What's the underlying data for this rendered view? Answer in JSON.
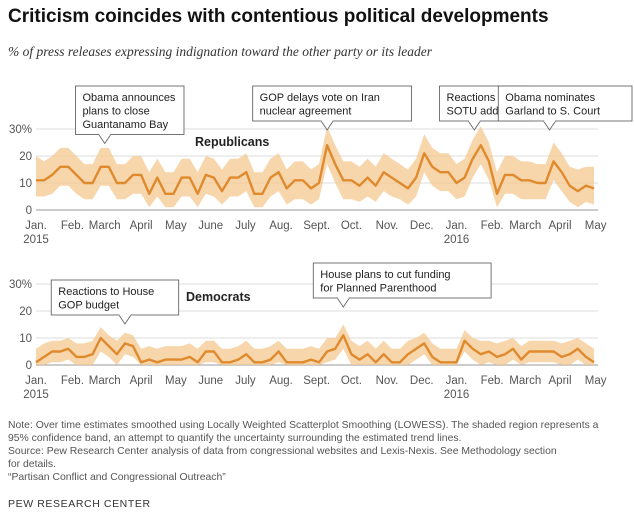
{
  "title": "Criticism coincides with contentious political developments",
  "subtitle": "% of press releases expressing indignation toward the other party or its leader",
  "colors": {
    "line": "#e08a2e",
    "band": "#f4c890",
    "axis": "#999999",
    "grid": "#dddddd",
    "text": "#333333"
  },
  "chart_data": [
    {
      "type": "area",
      "title": "Republicans",
      "ylabel": "",
      "xlabel": "",
      "ylim": [
        0,
        30
      ],
      "yticks": [
        0,
        10,
        20,
        30
      ],
      "ytick_labels": [
        "0",
        "10",
        "20",
        "30%"
      ],
      "grid": true,
      "xticks": [
        {
          "label": "Jan.",
          "year": "2015",
          "week": 1
        },
        {
          "label": "Feb.",
          "year": "",
          "week": 5.5
        },
        {
          "label": "March",
          "year": "",
          "week": 9.5
        },
        {
          "label": "April",
          "year": "",
          "week": 14
        },
        {
          "label": "May",
          "year": "",
          "week": 18.3
        },
        {
          "label": "June",
          "year": "",
          "week": 22.6
        },
        {
          "label": "July",
          "year": "",
          "week": 26.9
        },
        {
          "label": "Aug.",
          "year": "",
          "week": 31.3
        },
        {
          "label": "Sept.",
          "year": "",
          "week": 35.7
        },
        {
          "label": "Oct.",
          "year": "",
          "week": 40
        },
        {
          "label": "Nov.",
          "year": "",
          "week": 44.4
        },
        {
          "label": "Dec.",
          "year": "",
          "week": 48.7
        },
        {
          "label": "Jan.",
          "year": "2016",
          "week": 53
        },
        {
          "label": "Feb.",
          "year": "",
          "week": 57.4
        },
        {
          "label": "March",
          "year": "",
          "week": 61.5
        },
        {
          "label": "April",
          "year": "",
          "week": 65.8
        },
        {
          "label": "May",
          "year": "",
          "week": 70.2
        }
      ],
      "series": [
        {
          "weeks": [
            1,
            2,
            3,
            4,
            5,
            6,
            7,
            8,
            9,
            10,
            11,
            12,
            13,
            14,
            15,
            16,
            17,
            18,
            19,
            20,
            21,
            22,
            23,
            24,
            25,
            26,
            27,
            28,
            29,
            30,
            31,
            32,
            33,
            34,
            35,
            36,
            37,
            38,
            39,
            40,
            41,
            42,
            43,
            44,
            45,
            46,
            47,
            48,
            49,
            50,
            51,
            52,
            53,
            54,
            55,
            56,
            57,
            58,
            59,
            60,
            61,
            62,
            63,
            64,
            65,
            66,
            67,
            68,
            69,
            70
          ],
          "values": [
            11,
            11,
            13,
            16,
            16,
            13,
            10,
            10,
            16,
            16,
            10,
            10,
            13,
            13,
            6,
            12,
            6,
            6,
            12,
            12,
            6,
            13,
            12,
            7,
            12,
            12,
            14,
            6,
            6,
            12,
            14,
            8,
            11,
            11,
            8,
            10,
            24,
            17,
            11,
            11,
            9,
            12,
            9,
            14,
            12,
            10,
            8,
            12,
            21,
            16,
            14,
            14,
            10,
            12,
            19,
            24,
            18,
            6,
            13,
            13,
            11,
            11,
            10,
            10,
            18,
            14,
            9,
            7,
            9,
            8
          ],
          "lower": [
            5,
            5,
            6,
            9,
            9,
            6,
            4,
            4,
            9,
            9,
            4,
            4,
            6,
            6,
            1,
            5,
            1,
            1,
            5,
            5,
            1,
            6,
            5,
            2,
            5,
            5,
            7,
            1,
            1,
            5,
            7,
            2,
            4,
            4,
            2,
            4,
            17,
            10,
            4,
            4,
            3,
            5,
            3,
            7,
            5,
            4,
            2,
            5,
            14,
            9,
            7,
            7,
            4,
            5,
            12,
            17,
            11,
            1,
            6,
            6,
            4,
            4,
            4,
            4,
            11,
            7,
            3,
            1,
            3,
            2
          ],
          "upper": [
            20,
            18,
            20,
            23,
            23,
            20,
            17,
            17,
            23,
            23,
            17,
            17,
            20,
            20,
            14,
            19,
            14,
            14,
            19,
            19,
            14,
            20,
            19,
            15,
            19,
            19,
            21,
            14,
            14,
            19,
            21,
            15,
            18,
            18,
            15,
            17,
            31,
            24,
            18,
            18,
            16,
            19,
            16,
            21,
            19,
            17,
            15,
            19,
            28,
            23,
            21,
            21,
            17,
            19,
            26,
            31,
            25,
            14,
            20,
            20,
            18,
            18,
            17,
            17,
            25,
            21,
            16,
            15,
            16,
            16
          ]
        }
      ],
      "annotations": [
        {
          "text": [
            "Obama announces",
            "plans to close",
            "Guantanamo Bay"
          ],
          "week": 9.5
        },
        {
          "text": [
            "GOP delays vote on Iran",
            "nuclear agreement"
          ],
          "week": 37
        },
        {
          "text": [
            "Reactions to",
            "SOTU address"
          ],
          "week": 55.2
        },
        {
          "text": [
            "Obama nominates",
            "Garland to S. Court"
          ],
          "week": 64.5
        }
      ]
    },
    {
      "type": "area",
      "title": "Democrats",
      "ylabel": "",
      "xlabel": "",
      "ylim": [
        0,
        30
      ],
      "yticks": [
        0,
        10,
        20,
        30
      ],
      "ytick_labels": [
        "0",
        "10",
        "20",
        "30%"
      ],
      "grid": true,
      "xticks": [
        {
          "label": "Jan.",
          "year": "2015",
          "week": 1
        },
        {
          "label": "Feb.",
          "year": "",
          "week": 5.5
        },
        {
          "label": "March",
          "year": "",
          "week": 9.5
        },
        {
          "label": "April",
          "year": "",
          "week": 14
        },
        {
          "label": "May",
          "year": "",
          "week": 18.3
        },
        {
          "label": "June",
          "year": "",
          "week": 22.6
        },
        {
          "label": "July",
          "year": "",
          "week": 26.9
        },
        {
          "label": "Aug.",
          "year": "",
          "week": 31.3
        },
        {
          "label": "Sept.",
          "year": "",
          "week": 35.7
        },
        {
          "label": "Oct.",
          "year": "",
          "week": 40
        },
        {
          "label": "Nov.",
          "year": "",
          "week": 44.4
        },
        {
          "label": "Dec.",
          "year": "",
          "week": 48.7
        },
        {
          "label": "Jan.",
          "year": "2016",
          "week": 53
        },
        {
          "label": "Feb.",
          "year": "",
          "week": 57.4
        },
        {
          "label": "March",
          "year": "",
          "week": 61.5
        },
        {
          "label": "April",
          "year": "",
          "week": 65.8
        },
        {
          "label": "May",
          "year": "",
          "week": 70.2
        }
      ],
      "series": [
        {
          "weeks": [
            1,
            2,
            3,
            4,
            5,
            6,
            7,
            8,
            9,
            10,
            11,
            12,
            13,
            14,
            15,
            16,
            17,
            18,
            19,
            20,
            21,
            22,
            23,
            24,
            25,
            26,
            27,
            28,
            29,
            30,
            31,
            32,
            33,
            34,
            35,
            36,
            37,
            38,
            39,
            40,
            41,
            42,
            43,
            44,
            45,
            46,
            47,
            48,
            49,
            50,
            51,
            52,
            53,
            54,
            55,
            56,
            57,
            58,
            59,
            60,
            61,
            62,
            63,
            64,
            65,
            66,
            67,
            68,
            69,
            70
          ],
          "values": [
            1,
            3,
            5,
            5,
            6,
            3,
            3,
            4,
            10,
            7,
            4,
            8,
            7,
            1,
            2,
            1,
            2,
            2,
            2,
            3,
            1,
            5,
            5,
            1,
            1,
            2,
            4,
            1,
            1,
            2,
            5,
            1,
            1,
            1,
            2,
            1,
            5,
            6,
            11,
            4,
            2,
            4,
            1,
            4,
            1,
            1,
            4,
            6,
            8,
            3,
            1,
            1,
            1,
            9,
            6,
            4,
            5,
            3,
            4,
            6,
            2,
            5,
            5,
            5,
            5,
            3,
            4,
            6,
            3,
            1
          ],
          "lower": [
            0,
            0,
            1,
            1,
            2,
            0,
            0,
            0,
            5,
            3,
            0,
            4,
            3,
            0,
            0,
            0,
            0,
            0,
            0,
            0,
            0,
            1,
            1,
            0,
            0,
            0,
            0,
            0,
            0,
            0,
            1,
            0,
            0,
            0,
            0,
            0,
            1,
            2,
            6,
            0,
            0,
            0,
            0,
            0,
            0,
            0,
            0,
            2,
            4,
            0,
            0,
            0,
            0,
            5,
            2,
            0,
            1,
            0,
            0,
            2,
            0,
            1,
            1,
            1,
            1,
            0,
            0,
            2,
            0,
            0
          ],
          "upper": [
            6,
            8,
            9,
            9,
            10,
            8,
            8,
            9,
            14,
            11,
            9,
            12,
            11,
            6,
            7,
            6,
            7,
            7,
            7,
            8,
            6,
            9,
            9,
            6,
            6,
            7,
            9,
            6,
            6,
            7,
            9,
            6,
            6,
            6,
            7,
            6,
            10,
            10,
            15,
            9,
            7,
            9,
            6,
            9,
            6,
            6,
            9,
            10,
            12,
            8,
            6,
            6,
            6,
            13,
            10,
            9,
            9,
            8,
            9,
            10,
            7,
            9,
            9,
            9,
            9,
            8,
            9,
            10,
            8,
            6
          ]
        }
      ],
      "annotations": [
        {
          "text": [
            "Reactions to House",
            "GOP budget"
          ],
          "week": 12
        },
        {
          "text": [
            "House plans to cut funding",
            "for Planned Parenthood"
          ],
          "week": 39
        }
      ]
    }
  ],
  "notes": [
    "Note: Over time estimates smoothed using Locally Weighted Scatterplot Smoothing (LOWESS). The shaded region represents a",
    "95% confidence band, an attempt to quantify the uncertainty surrounding the estimated trend lines.",
    "Source: Pew Research Center analysis of data from congressional websites and Lexis-Nexis. See Methodology section",
    "for details.",
    "“Partisan Conflict and Congressional Outreach”"
  ],
  "source_org": "PEW RESEARCH CENTER"
}
